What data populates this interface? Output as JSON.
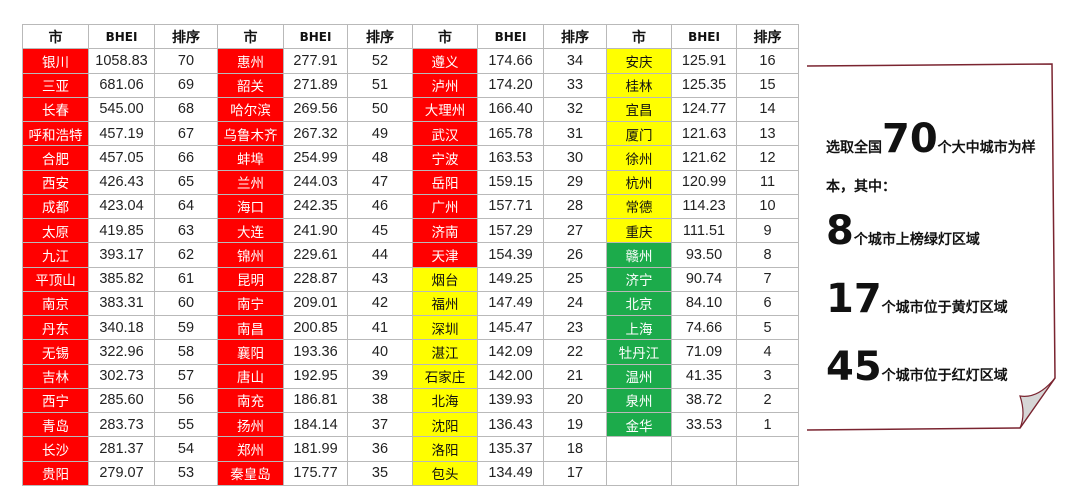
{
  "table": {
    "headers": [
      "市",
      "BHEI",
      "排序"
    ],
    "colors": {
      "red": "#ff0000",
      "yellow": "#ffff00",
      "green": "#1cab4b"
    },
    "rows": [
      [
        {
          "city": "银川",
          "bhei": "1058.83",
          "rank": "70",
          "color": "red"
        },
        {
          "city": "惠州",
          "bhei": "277.91",
          "rank": "52",
          "color": "red"
        },
        {
          "city": "遵义",
          "bhei": "174.66",
          "rank": "34",
          "color": "red"
        },
        {
          "city": "安庆",
          "bhei": "125.91",
          "rank": "16",
          "color": "yellow"
        }
      ],
      [
        {
          "city": "三亚",
          "bhei": "681.06",
          "rank": "69",
          "color": "red"
        },
        {
          "city": "韶关",
          "bhei": "271.89",
          "rank": "51",
          "color": "red"
        },
        {
          "city": "泸州",
          "bhei": "174.20",
          "rank": "33",
          "color": "red"
        },
        {
          "city": "桂林",
          "bhei": "125.35",
          "rank": "15",
          "color": "yellow"
        }
      ],
      [
        {
          "city": "长春",
          "bhei": "545.00",
          "rank": "68",
          "color": "red"
        },
        {
          "city": "哈尔滨",
          "bhei": "269.56",
          "rank": "50",
          "color": "red"
        },
        {
          "city": "大理州",
          "bhei": "166.40",
          "rank": "32",
          "color": "red"
        },
        {
          "city": "宜昌",
          "bhei": "124.77",
          "rank": "14",
          "color": "yellow"
        }
      ],
      [
        {
          "city": "呼和浩特",
          "bhei": "457.19",
          "rank": "67",
          "color": "red"
        },
        {
          "city": "乌鲁木齐",
          "bhei": "267.32",
          "rank": "49",
          "color": "red"
        },
        {
          "city": "武汉",
          "bhei": "165.78",
          "rank": "31",
          "color": "red"
        },
        {
          "city": "厦门",
          "bhei": "121.63",
          "rank": "13",
          "color": "yellow"
        }
      ],
      [
        {
          "city": "合肥",
          "bhei": "457.05",
          "rank": "66",
          "color": "red"
        },
        {
          "city": "蚌埠",
          "bhei": "254.99",
          "rank": "48",
          "color": "red"
        },
        {
          "city": "宁波",
          "bhei": "163.53",
          "rank": "30",
          "color": "red"
        },
        {
          "city": "徐州",
          "bhei": "121.62",
          "rank": "12",
          "color": "yellow"
        }
      ],
      [
        {
          "city": "西安",
          "bhei": "426.43",
          "rank": "65",
          "color": "red"
        },
        {
          "city": "兰州",
          "bhei": "244.03",
          "rank": "47",
          "color": "red"
        },
        {
          "city": "岳阳",
          "bhei": "159.15",
          "rank": "29",
          "color": "red"
        },
        {
          "city": "杭州",
          "bhei": "120.99",
          "rank": "11",
          "color": "yellow"
        }
      ],
      [
        {
          "city": "成都",
          "bhei": "423.04",
          "rank": "64",
          "color": "red"
        },
        {
          "city": "海口",
          "bhei": "242.35",
          "rank": "46",
          "color": "red"
        },
        {
          "city": "广州",
          "bhei": "157.71",
          "rank": "28",
          "color": "red"
        },
        {
          "city": "常德",
          "bhei": "114.23",
          "rank": "10",
          "color": "yellow"
        }
      ],
      [
        {
          "city": "太原",
          "bhei": "419.85",
          "rank": "63",
          "color": "red"
        },
        {
          "city": "大连",
          "bhei": "241.90",
          "rank": "45",
          "color": "red"
        },
        {
          "city": "济南",
          "bhei": "157.29",
          "rank": "27",
          "color": "red"
        },
        {
          "city": "重庆",
          "bhei": "111.51",
          "rank": "9",
          "color": "yellow"
        }
      ],
      [
        {
          "city": "九江",
          "bhei": "393.17",
          "rank": "62",
          "color": "red"
        },
        {
          "city": "锦州",
          "bhei": "229.61",
          "rank": "44",
          "color": "red"
        },
        {
          "city": "天津",
          "bhei": "154.39",
          "rank": "26",
          "color": "red"
        },
        {
          "city": "赣州",
          "bhei": "93.50",
          "rank": "8",
          "color": "green"
        }
      ],
      [
        {
          "city": "平顶山",
          "bhei": "385.82",
          "rank": "61",
          "color": "red"
        },
        {
          "city": "昆明",
          "bhei": "228.87",
          "rank": "43",
          "color": "red"
        },
        {
          "city": "烟台",
          "bhei": "149.25",
          "rank": "25",
          "color": "yellow"
        },
        {
          "city": "济宁",
          "bhei": "90.74",
          "rank": "7",
          "color": "green"
        }
      ],
      [
        {
          "city": "南京",
          "bhei": "383.31",
          "rank": "60",
          "color": "red"
        },
        {
          "city": "南宁",
          "bhei": "209.01",
          "rank": "42",
          "color": "red"
        },
        {
          "city": "福州",
          "bhei": "147.49",
          "rank": "24",
          "color": "yellow"
        },
        {
          "city": "北京",
          "bhei": "84.10",
          "rank": "6",
          "color": "green"
        }
      ],
      [
        {
          "city": "丹东",
          "bhei": "340.18",
          "rank": "59",
          "color": "red"
        },
        {
          "city": "南昌",
          "bhei": "200.85",
          "rank": "41",
          "color": "red"
        },
        {
          "city": "深圳",
          "bhei": "145.47",
          "rank": "23",
          "color": "yellow"
        },
        {
          "city": "上海",
          "bhei": "74.66",
          "rank": "5",
          "color": "green"
        }
      ],
      [
        {
          "city": "无锡",
          "bhei": "322.96",
          "rank": "58",
          "color": "red"
        },
        {
          "city": "襄阳",
          "bhei": "193.36",
          "rank": "40",
          "color": "red"
        },
        {
          "city": "湛江",
          "bhei": "142.09",
          "rank": "22",
          "color": "yellow"
        },
        {
          "city": "牡丹江",
          "bhei": "71.09",
          "rank": "4",
          "color": "green"
        }
      ],
      [
        {
          "city": "吉林",
          "bhei": "302.73",
          "rank": "57",
          "color": "red"
        },
        {
          "city": "唐山",
          "bhei": "192.95",
          "rank": "39",
          "color": "red"
        },
        {
          "city": "石家庄",
          "bhei": "142.00",
          "rank": "21",
          "color": "yellow"
        },
        {
          "city": "温州",
          "bhei": "41.35",
          "rank": "3",
          "color": "green"
        }
      ],
      [
        {
          "city": "西宁",
          "bhei": "285.60",
          "rank": "56",
          "color": "red"
        },
        {
          "city": "南充",
          "bhei": "186.81",
          "rank": "38",
          "color": "red"
        },
        {
          "city": "北海",
          "bhei": "139.93",
          "rank": "20",
          "color": "yellow"
        },
        {
          "city": "泉州",
          "bhei": "38.72",
          "rank": "2",
          "color": "green"
        }
      ],
      [
        {
          "city": "青岛",
          "bhei": "283.73",
          "rank": "55",
          "color": "red"
        },
        {
          "city": "扬州",
          "bhei": "184.14",
          "rank": "37",
          "color": "red"
        },
        {
          "city": "沈阳",
          "bhei": "136.43",
          "rank": "19",
          "color": "yellow"
        },
        {
          "city": "金华",
          "bhei": "33.53",
          "rank": "1",
          "color": "green"
        }
      ],
      [
        {
          "city": "长沙",
          "bhei": "281.37",
          "rank": "54",
          "color": "red"
        },
        {
          "city": "郑州",
          "bhei": "181.99",
          "rank": "36",
          "color": "red"
        },
        {
          "city": "洛阳",
          "bhei": "135.37",
          "rank": "18",
          "color": "yellow"
        },
        null
      ],
      [
        {
          "city": "贵阳",
          "bhei": "279.07",
          "rank": "53",
          "color": "red"
        },
        {
          "city": "秦皇岛",
          "bhei": "175.77",
          "rank": "35",
          "color": "red"
        },
        {
          "city": "包头",
          "bhei": "134.49",
          "rank": "17",
          "color": "yellow"
        },
        null
      ]
    ]
  },
  "note": {
    "line1_prefix": "选取全国",
    "line1_num": "70",
    "line1_suffix": "个大中城市为样",
    "line2": "本，其中：",
    "green_num": "8",
    "green_text": "个城市上榜绿灯区域",
    "yellow_num": "17",
    "yellow_text": "个城市位于黄灯区域",
    "red_num": "45",
    "red_text": "个城市位于红灯区域"
  }
}
